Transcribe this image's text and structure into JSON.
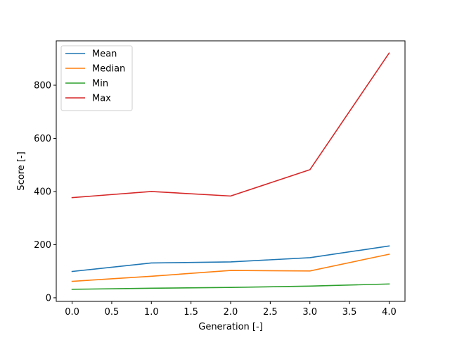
{
  "chart_data": {
    "type": "line",
    "x": [
      0,
      1,
      2,
      3,
      4
    ],
    "series": [
      {
        "name": "Mean",
        "color": "#1f77b4",
        "values": [
          99,
          131,
          135,
          151,
          195
        ]
      },
      {
        "name": "Median",
        "color": "#ff7f0e",
        "values": [
          62,
          81,
          103,
          101,
          164
        ]
      },
      {
        "name": "Min",
        "color": "#2ca02c",
        "values": [
          32,
          36,
          39,
          44,
          52
        ]
      },
      {
        "name": "Max",
        "color": "#d62728",
        "values": [
          377,
          400,
          383,
          482,
          921
        ]
      }
    ],
    "xlabel": "Generation [-]",
    "ylabel": "Score [-]",
    "xlim": [
      -0.2,
      4.2
    ],
    "ylim": [
      -13.5,
      967
    ],
    "xticks": [
      0.0,
      0.5,
      1.0,
      1.5,
      2.0,
      2.5,
      3.0,
      3.5,
      4.0
    ],
    "xtick_labels": [
      "0.0",
      "0.5",
      "1.0",
      "1.5",
      "2.0",
      "2.5",
      "3.0",
      "3.5",
      "4.0"
    ],
    "yticks": [
      0,
      200,
      400,
      600,
      800
    ],
    "ytick_labels": [
      "0",
      "200",
      "400",
      "600",
      "800"
    ],
    "grid": false,
    "legend_position": "top-left"
  }
}
